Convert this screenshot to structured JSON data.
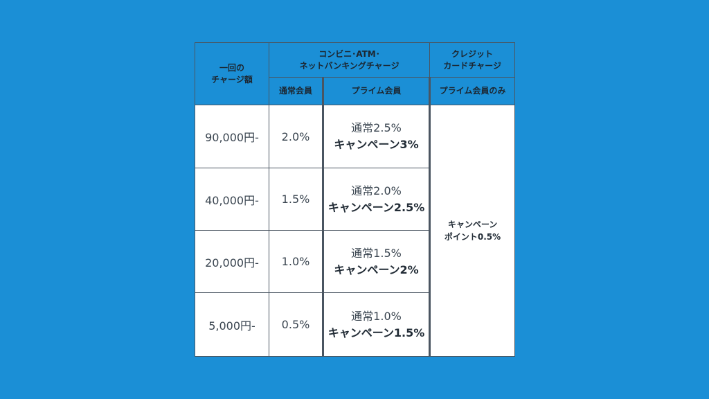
{
  "headers": {
    "charge_amount": "一回の\nチャージ額",
    "convenience": "コンビニ･ATM･\nネットバンキングチャージ",
    "credit": "クレジット\nカードチャージ",
    "regular_member": "通常会員",
    "prime_member": "プライム会員",
    "prime_only": "プライム会員のみ"
  },
  "rows": [
    {
      "amount": "90,000円-",
      "regular": "2.0%",
      "prime_normal": "通常2.5%",
      "prime_campaign": "キャンペーン3%"
    },
    {
      "amount": "40,000円-",
      "regular": "1.5%",
      "prime_normal": "通常2.0%",
      "prime_campaign": "キャンペーン2.5%"
    },
    {
      "amount": "20,000円-",
      "regular": "1.0%",
      "prime_normal": "通常1.5%",
      "prime_campaign": "キャンペーン2%"
    },
    {
      "amount": "5,000円-",
      "regular": "0.5%",
      "prime_normal": "通常1.0%",
      "prime_campaign": "キャンペーン1.5%"
    }
  ],
  "credit_value": "キャンペーン\nポイント0.5%",
  "colors": {
    "background": "#1b8fd6",
    "header": "#1b8fd6",
    "border": "#4a5561"
  }
}
